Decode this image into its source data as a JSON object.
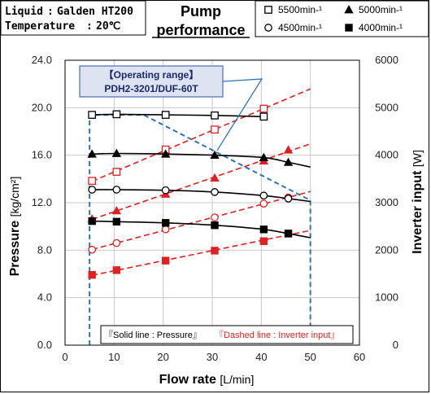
{
  "header": {
    "liquid_label": "Liquid",
    "liquid_value": "Galden HT200",
    "temperature_label": "Temperature",
    "temperature_value": "20℃",
    "title_line1": "Pump",
    "title_line2": "performance"
  },
  "chart_data": {
    "type": "line",
    "xlabel": "Flow rate",
    "xlabel_unit": "[L/min]",
    "ylabel_left": "Pressure",
    "ylabel_left_unit": "[kg/cm²]",
    "ylabel_right": "Inverter input",
    "ylabel_right_unit": "[W]",
    "xlim": [
      0,
      60
    ],
    "ylim_left": [
      0,
      24
    ],
    "ylim_right": [
      0,
      6000
    ],
    "x_ticks": [
      "0",
      "10",
      "20",
      "30",
      "40",
      "50",
      "60"
    ],
    "y_left_ticks": [
      "0.0",
      "4.0",
      "8.0",
      "12.0",
      "16.0",
      "20.0",
      "24.0"
    ],
    "y_right_ticks": [
      "0",
      "1000",
      "2000",
      "3000",
      "4000",
      "5000",
      "6000"
    ],
    "grid": true,
    "legend": [
      {
        "marker": "open-square",
        "label": "5500min-¹"
      },
      {
        "marker": "filled-triangle",
        "label": "5000min-¹"
      },
      {
        "marker": "open-circle",
        "label": "4500min-¹"
      },
      {
        "marker": "filled-square",
        "label": "4000min-¹"
      }
    ],
    "pressure_series": [
      {
        "name": "5500min-¹",
        "marker": "open-square",
        "x": [
          5.5,
          10.5,
          20.5,
          30.5,
          40.5
        ],
        "y": [
          19.4,
          19.45,
          19.4,
          19.35,
          19.25
        ]
      },
      {
        "name": "5000min-¹",
        "marker": "filled-triangle",
        "x": [
          5.5,
          10.5,
          20.5,
          30.5,
          40.5,
          45.5
        ],
        "y": [
          16.1,
          16.15,
          16.1,
          16.0,
          15.8,
          15.4
        ]
      },
      {
        "name": "4500min-¹",
        "marker": "open-circle",
        "x": [
          5.5,
          10.5,
          20.5,
          30.5,
          40.5,
          45.5
        ],
        "y": [
          13.1,
          13.1,
          13.05,
          12.9,
          12.6,
          12.35
        ]
      },
      {
        "name": "4000min-¹",
        "marker": "filled-square",
        "x": [
          5.5,
          10.5,
          20.5,
          30.5,
          40.5,
          45.5
        ],
        "y": [
          10.45,
          10.4,
          10.3,
          10.1,
          9.75,
          9.4
        ]
      }
    ],
    "pressure_curve_end_x": 50,
    "power_series": [
      {
        "name": "5500min-¹",
        "marker": "open-square",
        "x": [
          5.5,
          10.5,
          20.5,
          30.5,
          40.5
        ],
        "y": [
          3460,
          3650,
          4120,
          4540,
          4980
        ]
      },
      {
        "name": "5000min-¹",
        "marker": "filled-triangle",
        "x": [
          5.5,
          10.5,
          20.5,
          30.5,
          40.5,
          45.5
        ],
        "y": [
          2660,
          2830,
          3180,
          3520,
          3880,
          4110
        ]
      },
      {
        "name": "4500min-¹",
        "marker": "open-circle",
        "x": [
          5.5,
          10.5,
          20.5,
          30.5,
          40.5,
          45.5
        ],
        "y": [
          2010,
          2150,
          2440,
          2690,
          2980,
          3110
        ]
      },
      {
        "name": "4000min-¹",
        "marker": "filled-square",
        "x": [
          5.5,
          10.5,
          20.5,
          30.5,
          40.5,
          45.5
        ],
        "y": [
          1480,
          1580,
          1780,
          1990,
          2190,
          2350
        ]
      }
    ],
    "operating_range": {
      "x": [
        5,
        5,
        16,
        50,
        50
      ],
      "y": [
        0,
        19.4,
        19.4,
        12.2,
        0
      ]
    },
    "callout": {
      "line1": "【Operating range】",
      "line2": "PDH2-3201/DUF-60T"
    },
    "note": {
      "solid": "『Solid line : Pressure』",
      "dashed": "『Dashed line : Inverter input』"
    }
  },
  "colors": {
    "pressure": "#000000",
    "power": "#e02020",
    "range": "#2e75b6",
    "callout_fill": "#dde3f1",
    "callout_border": "#4a6fb5",
    "grid": "#c8c8c8"
  }
}
